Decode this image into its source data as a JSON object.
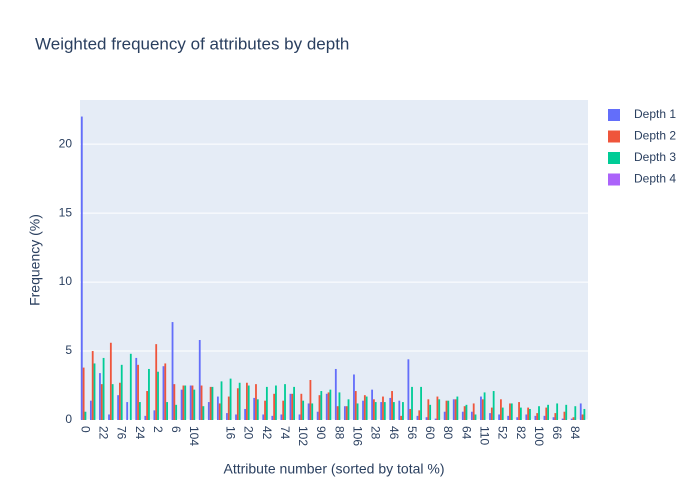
{
  "chart_data": {
    "type": "bar",
    "title": "Weighted frequency of attributes by depth",
    "x_label": "Attribute number (sorted by total %)",
    "y_label": "Frequency (%)",
    "categories": [
      "0",
      null,
      "22",
      null,
      "76",
      null,
      "24",
      null,
      "2",
      null,
      "6",
      null,
      "104",
      null,
      null,
      null,
      "16",
      null,
      "20",
      null,
      "42",
      null,
      "74",
      null,
      "102",
      null,
      "90",
      null,
      "88",
      null,
      "106",
      null,
      "28",
      null,
      "46",
      null,
      "56",
      null,
      "60",
      null,
      "80",
      null,
      "64",
      null,
      "110",
      null,
      "52",
      null,
      "82",
      null,
      "100",
      null,
      "66",
      null,
      "84",
      null
    ],
    "series": [
      {
        "name": "Depth 1",
        "color": "#636efa",
        "values": [
          22,
          1.4,
          3.4,
          0.4,
          1.8,
          1.3,
          4.5,
          0.3,
          0.7,
          3.9,
          7.1,
          2.2,
          2.5,
          5.8,
          1.3,
          1.7,
          0.5,
          0.4,
          0.8,
          1.6,
          0.4,
          0.3,
          0.4,
          1.9,
          0.4,
          1.2,
          0.6,
          1.9,
          3.7,
          1.0,
          3.3,
          1.4,
          2.2,
          1.3,
          1.6,
          1.4,
          4.4,
          0.3,
          0.2,
          0.1,
          0.6,
          1.5,
          0.6,
          0.6,
          1.7,
          0.5,
          0.4,
          0.3,
          0.2,
          0.4,
          0.3,
          0.3,
          0.2,
          0.1,
          0.1,
          1.2
        ]
      },
      {
        "name": "Depth 2",
        "color": "#ef553b",
        "values": [
          3.8,
          5.0,
          2.6,
          5.6,
          2.7,
          0,
          4.0,
          2.1,
          5.5,
          4.1,
          2.6,
          2.5,
          2.5,
          2.5,
          2.4,
          1.2,
          1.7,
          2.3,
          2.7,
          2.6,
          1.4,
          1.9,
          1.4,
          1.9,
          1.9,
          2.9,
          1.8,
          2.0,
          1.0,
          1.0,
          2.1,
          1.8,
          1.5,
          1.7,
          2.1,
          0.3,
          0.8,
          0.7,
          1.5,
          1.7,
          1.4,
          1.5,
          1.0,
          1.2,
          1.5,
          0.9,
          1.5,
          1.2,
          1.3,
          0.9,
          0.5,
          0.9,
          0.5,
          0.6,
          0.2,
          0.4
        ]
      },
      {
        "name": "Depth 3",
        "color": "#00cc96",
        "values": [
          0.6,
          4.1,
          4.5,
          2.6,
          4.0,
          4.8,
          1.3,
          3.7,
          3.5,
          1.3,
          1.1,
          2.5,
          2.2,
          1.0,
          2.4,
          2.8,
          3.0,
          2.7,
          2.5,
          1.5,
          2.4,
          2.5,
          2.6,
          2.4,
          1.4,
          1.2,
          2.1,
          2.2,
          2.0,
          1.5,
          1.2,
          1.7,
          1.3,
          1.3,
          1.3,
          1.3,
          2.4,
          2.4,
          1.1,
          1.5,
          1.4,
          1.7,
          1.1,
          0.4,
          2.0,
          2.1,
          0.9,
          1.2,
          0.9,
          0.8,
          1.0,
          1.1,
          1.2,
          1.1,
          1.0,
          0.8
        ]
      },
      {
        "name": "Depth 4",
        "color": "#ab63fa",
        "values": [
          0,
          0,
          0,
          0,
          0,
          0,
          0,
          0,
          0,
          0,
          0,
          0,
          0,
          0,
          0,
          0,
          0,
          0,
          0,
          0,
          0,
          0,
          0,
          0,
          0,
          0,
          0,
          0,
          0,
          0,
          0,
          0,
          0,
          0,
          0,
          0,
          0,
          0,
          0,
          0,
          0,
          0,
          0,
          0,
          0,
          0,
          0,
          0,
          0,
          0,
          0,
          0,
          0,
          0,
          0,
          0
        ]
      }
    ],
    "ylim": [
      0,
      23.2
    ],
    "yticks": [
      0,
      5,
      10,
      15,
      20
    ],
    "grid": true,
    "legend": "right"
  }
}
